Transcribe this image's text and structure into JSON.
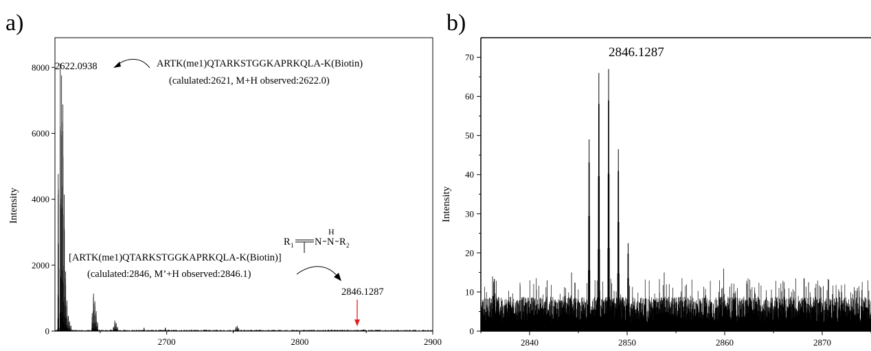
{
  "colors": {
    "ink": "#000000",
    "marker": "#e02020",
    "background": "#ffffff"
  },
  "chart_data": [
    {
      "panel_label": "a)",
      "type": "line",
      "subtype": "mass-spectrum",
      "ylabel": "Intensity",
      "xlabel": "",
      "xlim": [
        2616,
        2900
      ],
      "ylim": [
        0,
        8900
      ],
      "xticks": [
        2700,
        2800,
        2900
      ],
      "yticks": [
        0,
        2000,
        4000,
        6000,
        8000
      ],
      "grid": false,
      "peaks": [
        {
          "x": 2618.5,
          "y": 5750
        },
        {
          "x": 2620.0,
          "y": 8550
        },
        {
          "x": 2621.0,
          "y": 8700
        },
        {
          "x": 2622.0,
          "y": 7400
        },
        {
          "x": 2623.0,
          "y": 4200
        },
        {
          "x": 2624.0,
          "y": 2050
        },
        {
          "x": 2625.0,
          "y": 1000
        },
        {
          "x": 2626.0,
          "y": 560
        },
        {
          "x": 2627.0,
          "y": 320
        },
        {
          "x": 2628.0,
          "y": 200
        },
        {
          "x": 2644.0,
          "y": 550
        },
        {
          "x": 2645.0,
          "y": 1230
        },
        {
          "x": 2646.0,
          "y": 1100
        },
        {
          "x": 2647.0,
          "y": 650
        },
        {
          "x": 2648.0,
          "y": 320
        },
        {
          "x": 2660.0,
          "y": 150
        },
        {
          "x": 2661.0,
          "y": 360
        },
        {
          "x": 2662.0,
          "y": 280
        },
        {
          "x": 2663.0,
          "y": 150
        },
        {
          "x": 2683.0,
          "y": 110
        },
        {
          "x": 2699.0,
          "y": 120
        },
        {
          "x": 2752.0,
          "y": 130
        },
        {
          "x": 2753.0,
          "y": 170
        },
        {
          "x": 2754.0,
          "y": 110
        },
        {
          "x": 2847.0,
          "y": 40
        },
        {
          "x": 2848.0,
          "y": 55
        }
      ],
      "annotations": {
        "peak1_mass": "2622.0938",
        "peak1_seq": "ARTK(me1)QTARKSTGGKAPRKQLA-K(Biotin)",
        "peak1_calc": "(calulated:2621, M+H observed:2622.0)",
        "peak2_seq": "[ARTK(me1)QTARKSTGGKAPRKQLA-K(Biotin)]",
        "peak2_calc": "(calulated:2846, M’+H observed:2846.1)",
        "peak2_mass": "2846.1287"
      },
      "structure": {
        "r1": "R",
        "r1_sub": "1",
        "n1": "N",
        "n2": "N",
        "h": "H",
        "r2": "R",
        "r2_sub": "2"
      }
    },
    {
      "panel_label": "b)",
      "type": "line",
      "subtype": "mass-spectrum",
      "ylabel": "Intensity",
      "xlabel": "",
      "xlim": [
        2835,
        2875
      ],
      "ylim": [
        0,
        75
      ],
      "xticks": [
        2840,
        2850,
        2860,
        2870
      ],
      "yticks": [
        0,
        10,
        20,
        30,
        40,
        50,
        60,
        70
      ],
      "grid": false,
      "noise_level": 8,
      "peaks": [
        {
          "x": 2846.1,
          "y": 49
        },
        {
          "x": 2847.1,
          "y": 66
        },
        {
          "x": 2848.1,
          "y": 67
        },
        {
          "x": 2849.1,
          "y": 46.5
        },
        {
          "x": 2850.1,
          "y": 22.5
        }
      ],
      "annotations": {
        "peak_mass": "2846.1287"
      }
    }
  ]
}
